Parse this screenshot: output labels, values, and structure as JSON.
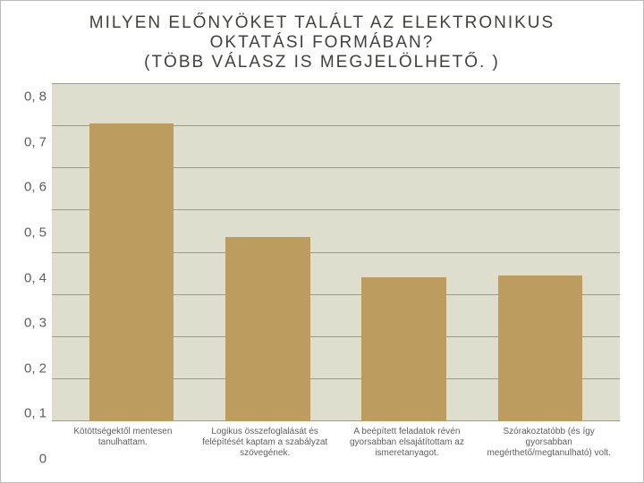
{
  "chart": {
    "type": "bar",
    "title": "MILYEN ELŐNYÖKET TALÁLT AZ ELEKTRONIKUS\nOKTATÁSI FORMÁBAN?\n(TÖBB VÁLASZ IS MEGJELÖLHETŐ. )",
    "title_color": "#41413e",
    "title_fontsize": 19,
    "title_letter_spacing": 2,
    "categories": [
      "Kötöttségektől mentesen tanulhattam.",
      "Logikus összefoglalását és felépítését kaptam a szabályzat szövegének.",
      "A beépített feladatok révén gyorsabban elsajátítottam az ismeretanyagot.",
      "Szórakoztatóbb (és így gyorsabban megérthető/megtanulható) volt."
    ],
    "values": [
      0.705,
      0.435,
      0.34,
      0.345
    ],
    "bar_colors": [
      "#bd9d5f",
      "#bd9d5f",
      "#bd9d5f",
      "#bd9d5f"
    ],
    "bar_width": 0.62,
    "ylim": [
      0,
      0.8
    ],
    "ytick_step": 0.1,
    "yticks": [
      "0, 8",
      "0, 7",
      "0, 6",
      "0, 5",
      "0, 4",
      "0, 3",
      "0, 2",
      "0, 1",
      "0"
    ],
    "background_color": "#dedecf",
    "grid_color": "#9b9b89",
    "axis_tick_color": "#5e5e5e",
    "label_fontsize": 10,
    "ytick_fontsize": 15
  }
}
